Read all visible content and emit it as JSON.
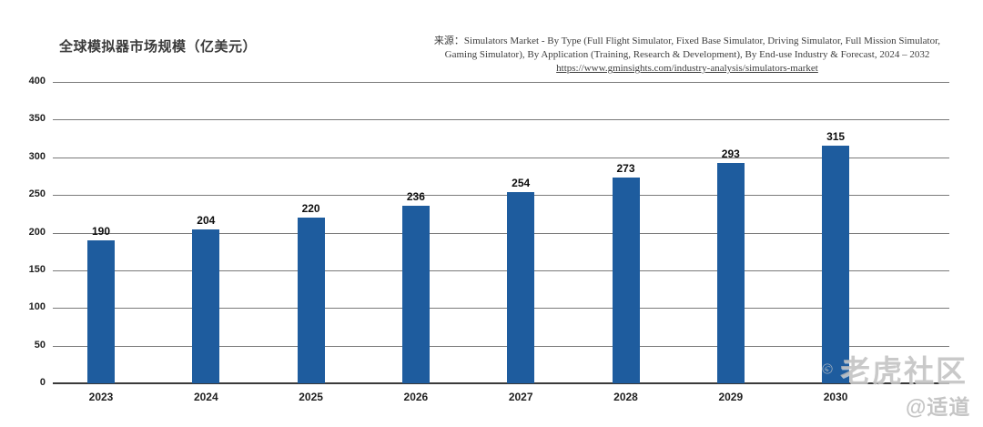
{
  "title": "全球模拟器市场规模（亿美元）",
  "source": {
    "label": "来源：",
    "text": "Simulators Market - By Type (Full Flight Simulator, Fixed Base Simulator, Driving Simulator, Full Mission Simulator, Gaming  Simulator), By Application (Training, Research &  Development), By End-use Industry &  Forecast, 2024 – 2032 ",
    "link": "https://www.gminsights.com/industry-analysis/simulators-market"
  },
  "watermark": {
    "logo": "tiger-logo",
    "community": "老虎社区",
    "handle": "@适道"
  },
  "colors": {
    "bar": "#1e5c9e",
    "gridline": "#7a7a7a",
    "axis": "#3a3a3a",
    "watermark": "#bbbbbb"
  },
  "chart_data": {
    "type": "bar",
    "title": "全球模拟器市场规模（亿美元）",
    "categories": [
      "2023",
      "2024",
      "2025",
      "2026",
      "2027",
      "2028",
      "2029",
      "2030"
    ],
    "values": [
      190,
      204,
      220,
      236,
      254,
      273,
      293,
      315
    ],
    "xlabel": "",
    "ylabel": "",
    "ylim": [
      0,
      400
    ],
    "ytick_step": 50,
    "grid": true,
    "data_labels": true,
    "legend": "none"
  }
}
